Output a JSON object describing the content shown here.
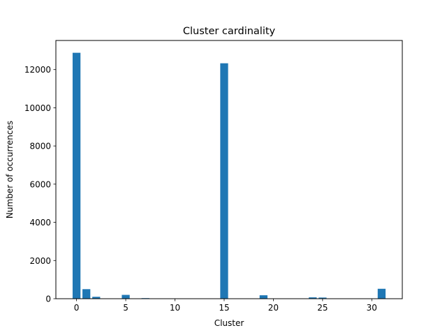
{
  "chart_data": {
    "type": "bar",
    "title": "Cluster cardinality",
    "xlabel": "Cluster",
    "ylabel": "Number of occurrences",
    "x": [
      0,
      1,
      2,
      5,
      7,
      15,
      19,
      24,
      25,
      31
    ],
    "values": [
      12880,
      500,
      100,
      200,
      30,
      12330,
      180,
      70,
      60,
      520
    ],
    "xlim": [
      -2.1,
      33.1
    ],
    "ylim": [
      0,
      13524
    ],
    "xticks": [
      0,
      5,
      10,
      15,
      20,
      25,
      30
    ],
    "yticks": [
      0,
      2000,
      4000,
      6000,
      8000,
      10000,
      12000
    ],
    "bar_color": "#1f77b4",
    "grid": false,
    "legend": "none"
  }
}
